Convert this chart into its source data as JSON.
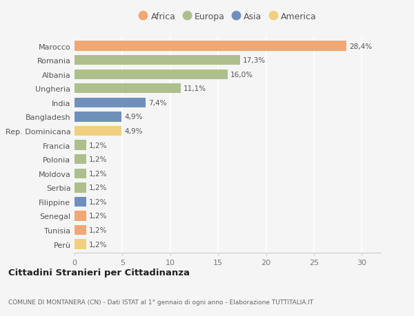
{
  "countries": [
    "Marocco",
    "Romania",
    "Albania",
    "Ungheria",
    "India",
    "Bangladesh",
    "Rep. Dominicana",
    "Francia",
    "Polonia",
    "Moldova",
    "Serbia",
    "Filippine",
    "Senegal",
    "Tunisia",
    "Perù"
  ],
  "values": [
    28.4,
    17.3,
    16.0,
    11.1,
    7.4,
    4.9,
    4.9,
    1.2,
    1.2,
    1.2,
    1.2,
    1.2,
    1.2,
    1.2,
    1.2
  ],
  "labels": [
    "28,4%",
    "17,3%",
    "16,0%",
    "11,1%",
    "7,4%",
    "4,9%",
    "4,9%",
    "1,2%",
    "1,2%",
    "1,2%",
    "1,2%",
    "1,2%",
    "1,2%",
    "1,2%",
    "1,2%"
  ],
  "continents": [
    "Africa",
    "Europa",
    "Europa",
    "Europa",
    "Asia",
    "Asia",
    "America",
    "Europa",
    "Europa",
    "Europa",
    "Europa",
    "Asia",
    "Africa",
    "Africa",
    "America"
  ],
  "colors": {
    "Africa": "#F0A875",
    "Europa": "#ADBF8C",
    "Asia": "#7090BC",
    "America": "#F0D080"
  },
  "legend_order": [
    "Africa",
    "Europa",
    "Asia",
    "America"
  ],
  "title": "Cittadini Stranieri per Cittadinanza",
  "subtitle": "COMUNE DI MONTANERA (CN) - Dati ISTAT al 1° gennaio di ogni anno - Elaborazione TUTTITALIA.IT",
  "xlim": [
    0,
    32
  ],
  "xticks": [
    0,
    5,
    10,
    15,
    20,
    25,
    30
  ],
  "background_color": "#f5f5f5",
  "grid_color": "#ffffff",
  "bar_height": 0.7
}
